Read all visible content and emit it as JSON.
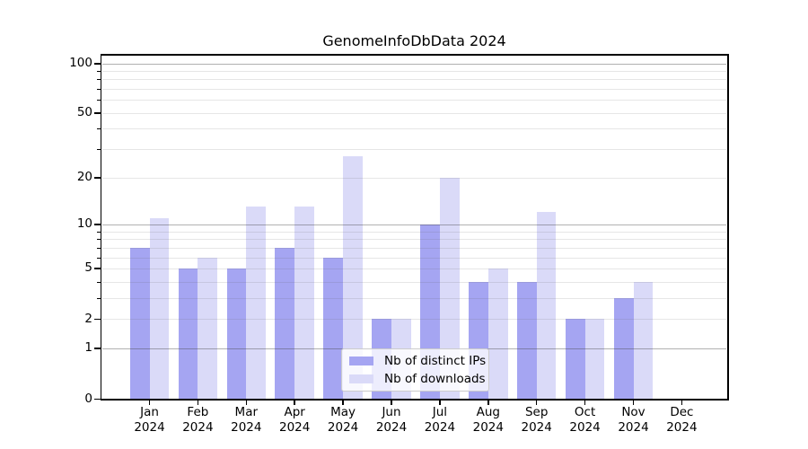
{
  "chart_data": {
    "type": "bar",
    "title": "GenomeInfoDbData 2024",
    "categories": [
      "Jan 2024",
      "Feb 2024",
      "Mar 2024",
      "Apr 2024",
      "May 2024",
      "Jun 2024",
      "Jul 2024",
      "Aug 2024",
      "Sep 2024",
      "Oct 2024",
      "Nov 2024",
      "Dec 2024"
    ],
    "series": [
      {
        "name": "Nb of distinct IPs",
        "color": "#a5a5f2",
        "values": [
          7,
          5,
          5,
          7,
          6,
          2,
          10,
          4,
          4,
          2,
          3,
          0
        ]
      },
      {
        "name": "Nb of downloads",
        "color": "#dadaf8",
        "values": [
          11,
          6,
          13,
          13,
          27,
          2,
          20,
          5,
          12,
          2,
          4,
          0
        ]
      }
    ],
    "yscale": "log1p",
    "ylim": [
      0,
      114
    ],
    "yticks_labeled": [
      100,
      50,
      20,
      10,
      5,
      2,
      1,
      0
    ],
    "yticks_minor": [
      3,
      4,
      6,
      7,
      8,
      9,
      30,
      40,
      60,
      70,
      80,
      90
    ],
    "gridlines_major": [
      1,
      10,
      100
    ],
    "gridlines_minor": [
      2,
      3,
      4,
      5,
      6,
      7,
      8,
      9,
      20,
      30,
      40,
      50,
      60,
      70,
      80,
      90
    ],
    "grid": "on",
    "legend_position": "lower center",
    "xlabel": "",
    "ylabel": ""
  }
}
